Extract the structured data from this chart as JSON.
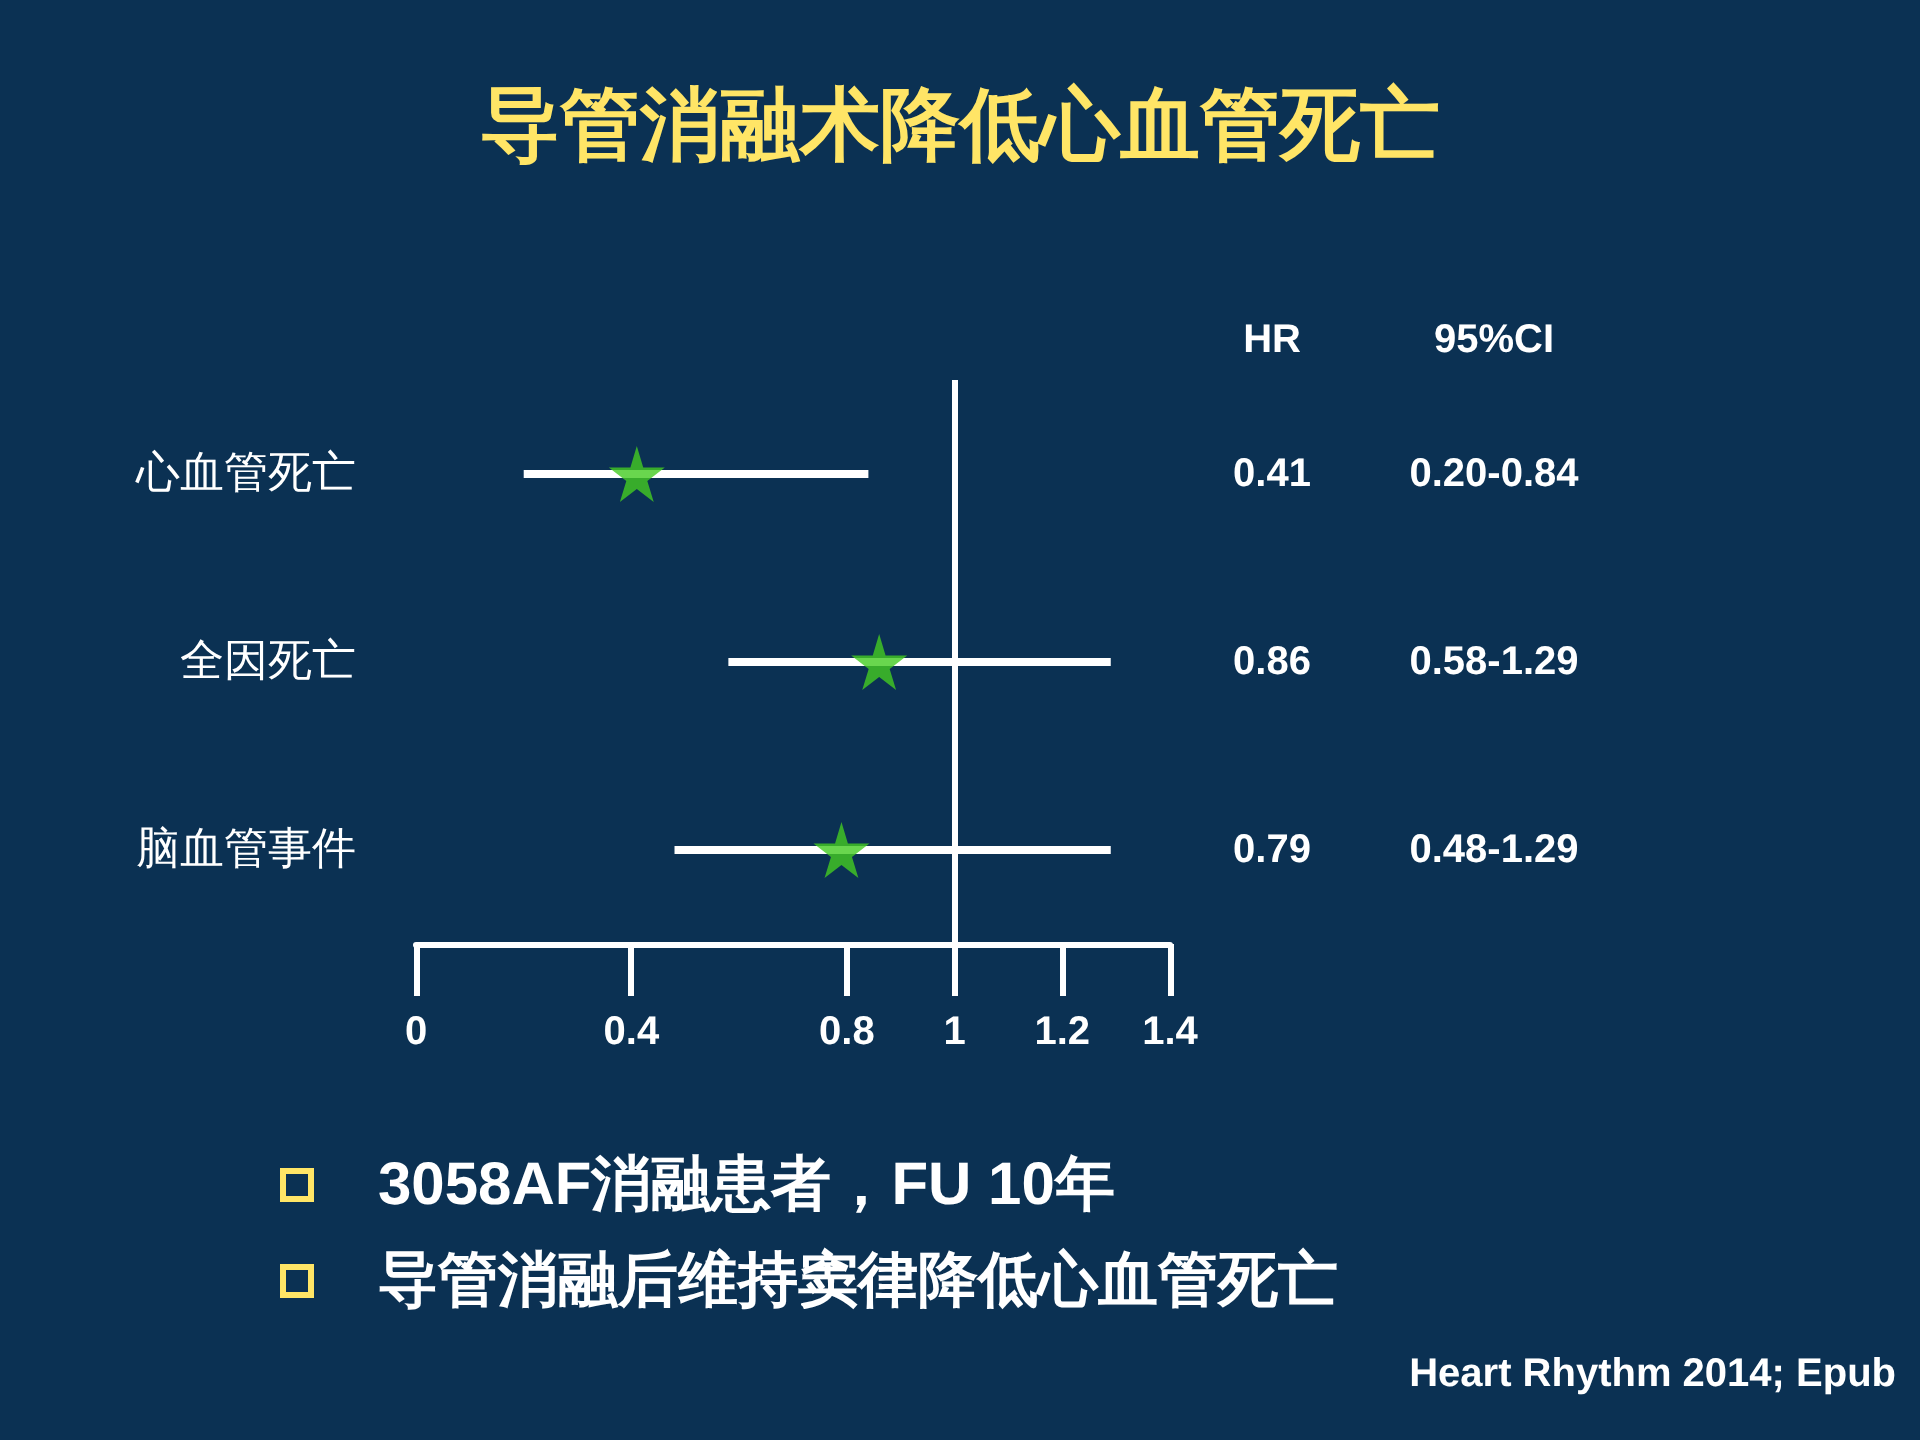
{
  "chart_data": {
    "type": "scatter",
    "title": "导管消融术降低心血管死亡",
    "orientation": "horizontal",
    "categories": [
      "心血管死亡",
      "全因死亡",
      "脑血管事件"
    ],
    "series": [
      {
        "color": "#44cc22",
        "values": [
          0.41,
          0.86,
          0.79
        ],
        "errors": [
          [
            0.2,
            0.84
          ],
          [
            0.58,
            1.29
          ],
          [
            0.48,
            1.29
          ]
        ]
      }
    ],
    "xlim": [
      0,
      1.4
    ],
    "xticks": [
      0,
      0.4,
      0.8,
      1,
      1.2,
      1.4
    ],
    "ref_lines": [
      {
        "axis": "x",
        "value": 1,
        "color": "#ffffff"
      }
    ],
    "marker": "star",
    "grid": false,
    "data_labels": true,
    "annotations": [
      "HR",
      "95%CI",
      "0.20-0.84",
      "0.58-1.29",
      "0.48-1.29",
      "3058AF消融患者，FU 10年",
      "导管消融后维持窦律降低心血管死亡",
      "Heart Rhythm 2014; Epub"
    ]
  }
}
